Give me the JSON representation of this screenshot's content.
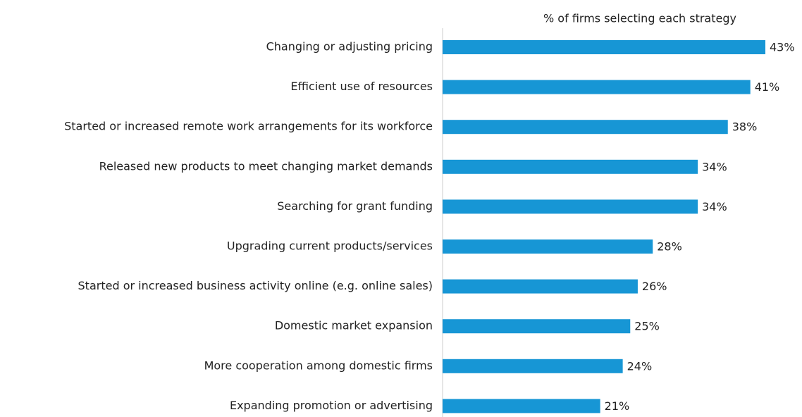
{
  "chart_data": {
    "type": "hbar",
    "x_label": "% of firms selecting each strategy",
    "categories": [
      "Changing or adjusting pricing",
      "Efficient use of resources",
      "Started or increased remote work arrangements for its workforce",
      "Released new products to meet changing market demands",
      "Searching for grant funding",
      "Upgrading current products/services",
      "Started or increased business activity online (e.g. online sales)",
      "Domestic market expansion",
      "More cooperation among domestic firms",
      "Expanding promotion or advertising"
    ],
    "values": [
      43,
      41,
      38,
      34,
      34,
      28,
      26,
      25,
      24,
      21
    ],
    "value_labels": [
      "43%",
      "41%",
      "38%",
      "34%",
      "34%",
      "28%",
      "26%",
      "25%",
      "24%",
      "21%"
    ],
    "color": "#1796d5"
  }
}
